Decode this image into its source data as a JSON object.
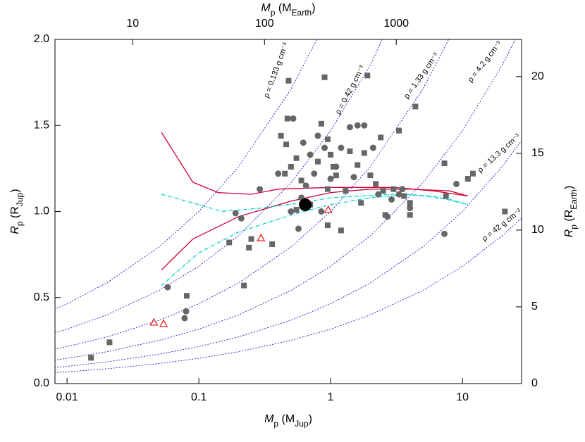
{
  "chart_data": {
    "type": "scatter",
    "x_label": {
      "symbol": "M",
      "symbol_sub": "p",
      "unit": " (M",
      "unit_sub": "Jup",
      "close": ")"
    },
    "y_label": {
      "symbol": "R",
      "symbol_sub": "p",
      "unit": " (R",
      "unit_sub": "Jup",
      "close": ")"
    },
    "x2_label": {
      "symbol": "M",
      "symbol_sub": "p",
      "unit": " (M",
      "unit_sub": "Earth",
      "close": ")"
    },
    "y2_label": {
      "symbol": "R",
      "symbol_sub": "p",
      "unit": " (R",
      "unit_sub": "Earth",
      "close": ")"
    },
    "xlog": true,
    "xlim": [
      0.0081,
      28.1
    ],
    "xticks": [
      0.01,
      0.1,
      1,
      10
    ],
    "ylim": [
      0,
      2
    ],
    "yticks": [
      {
        "value": 0,
        "label": "0.0"
      },
      {
        "value": 0.5,
        "label": "0.5"
      },
      {
        "value": 1,
        "label": "1.0"
      },
      {
        "value": 1.5,
        "label": "1.5"
      },
      {
        "value": 2,
        "label": "2.0"
      }
    ],
    "x2lim": [
      2.57,
      8930
    ],
    "x2ticks": [
      10,
      100,
      1000
    ],
    "y2lim": [
      0,
      22.42
    ],
    "y2ticks": [
      0,
      5,
      10,
      15,
      20
    ],
    "density_x": [
      0.008,
      0.01,
      0.02,
      0.05,
      0.1,
      0.2,
      0.5,
      1,
      2,
      5,
      10,
      20,
      28
    ],
    "density_curves": [
      {
        "name": "ρ = 0.133 g cm⁻³",
        "color": "#0000cc",
        "values": [
          0.431,
          0.464,
          0.585,
          0.794,
          1.0,
          1.26,
          1.71,
          2.154,
          2.714,
          3.68,
          4.64,
          5.85,
          6.54
        ]
      },
      {
        "name": "ρ = 0.42 g cm⁻³",
        "color": "#0000cc",
        "values": [
          0.294,
          0.316,
          0.399,
          0.541,
          0.682,
          0.859,
          1.166,
          1.469,
          1.85,
          2.51,
          3.16,
          3.99,
          4.46
        ]
      },
      {
        "name": "ρ = 1.33 g cm⁻³",
        "color": "#0000cc",
        "values": [
          0.2,
          0.215,
          0.271,
          0.368,
          0.464,
          0.585,
          0.794,
          1.0,
          1.26,
          1.71,
          2.154,
          2.71,
          3.04
        ]
      },
      {
        "name": "ρ = 4.2 g cm⁻³",
        "color": "#0000cc",
        "values": [
          0.136,
          0.147,
          0.185,
          0.251,
          0.316,
          0.399,
          0.541,
          0.682,
          0.859,
          1.166,
          1.469,
          1.85,
          2.07
        ]
      },
      {
        "name": "ρ = 13.3 g cm⁻³",
        "color": "#0000cc",
        "values": [
          0.0928,
          0.1,
          0.126,
          0.171,
          0.215,
          0.271,
          0.368,
          0.464,
          0.585,
          0.794,
          1.0,
          1.26,
          1.41
        ]
      },
      {
        "name": "ρ = 42 g cm⁻³",
        "color": "#0000cc",
        "values": [
          0.0632,
          0.0682,
          0.0859,
          0.1166,
          0.147,
          0.185,
          0.251,
          0.316,
          0.399,
          0.541,
          0.682,
          0.859,
          0.96
        ]
      }
    ],
    "model_curves": [
      {
        "color": "#cc0033",
        "dash": false,
        "x": [
          0.052,
          0.09,
          0.14,
          0.25,
          0.4,
          1,
          3,
          6,
          11
        ],
        "values": [
          1.46,
          1.17,
          1.11,
          1.1,
          1.13,
          1.14,
          1.14,
          1.12,
          1.09
        ]
      },
      {
        "color": "#cc0033",
        "dash": false,
        "x": [
          0.052,
          0.09,
          0.2,
          0.5,
          1,
          2,
          4,
          8,
          11
        ],
        "values": [
          0.66,
          0.84,
          0.97,
          1.06,
          1.11,
          1.13,
          1.13,
          1.12,
          1.09
        ]
      },
      {
        "color": "#00cccc",
        "dash": true,
        "x": [
          0.052,
          0.1,
          0.15,
          0.3,
          0.6,
          1,
          3,
          6,
          11
        ],
        "values": [
          1.1,
          1.04,
          1.0,
          1.02,
          1.05,
          1.08,
          1.1,
          1.09,
          1.04
        ]
      },
      {
        "color": "#00cccc",
        "dash": true,
        "x": [
          0.052,
          0.1,
          0.2,
          0.5,
          1,
          2,
          4,
          8,
          11
        ],
        "values": [
          0.57,
          0.76,
          0.88,
          0.98,
          1.04,
          1.08,
          1.1,
          1.07,
          1.04
        ]
      }
    ],
    "series": [
      {
        "marker": "square",
        "color": "#666666",
        "x": [
          0.0152,
          0.021,
          0.081,
          0.22,
          0.17,
          0.24,
          0.25,
          0.36,
          0.48,
          0.47,
          0.42,
          0.46,
          0.45,
          0.5,
          0.55,
          0.6,
          0.55,
          0.7,
          0.8,
          0.85,
          0.9,
          0.95,
          1.0,
          1.05,
          1.1,
          0.95,
          0.95,
          1.2,
          1.3,
          1.4,
          1.6,
          1.8,
          1.9,
          2.0,
          2.2,
          2.4,
          2.5,
          2.6,
          3.0,
          3.3,
          3.6,
          4.0,
          4.4,
          7.3,
          7.5,
          11,
          12,
          21,
          4.0,
          1.7
        ],
        "values": [
          0.15,
          0.24,
          0.51,
          0.57,
          0.82,
          0.79,
          0.84,
          0.81,
          1.76,
          1.54,
          1.44,
          1.39,
          1.22,
          1.26,
          1.31,
          1.18,
          1.01,
          1.04,
          1.29,
          1.51,
          1.78,
          1.42,
          1.33,
          1.26,
          1.21,
          1.13,
          0.92,
          0.89,
          1.12,
          1.35,
          1.27,
          1.34,
          1.79,
          1.21,
          1.16,
          1.43,
          1.12,
          0.98,
          1.13,
          1.47,
          1.09,
          1.05,
          1.61,
          1.28,
          1.09,
          1.19,
          1.22,
          1.0,
          0.98,
          1.05
        ]
      },
      {
        "marker": "circle",
        "color": "#666666",
        "x": [
          0.058,
          0.08,
          0.078,
          0.19,
          0.21,
          0.29,
          0.57,
          0.5,
          0.52,
          0.6,
          0.65,
          0.62,
          0.7,
          0.75,
          0.8,
          0.85,
          0.9,
          1.0,
          1.1,
          1.2,
          1.4,
          1.5,
          1.6,
          1.8,
          2.1,
          2.3,
          2.7,
          3.3,
          3.5,
          4.0,
          7.3,
          9,
          2.9,
          0.4
        ],
        "values": [
          0.56,
          0.42,
          0.38,
          0.99,
          0.96,
          1.13,
          0.9,
          1.0,
          1.54,
          1.08,
          1.15,
          1.4,
          1.33,
          1.22,
          1.44,
          1.0,
          1.37,
          1.19,
          1.26,
          1.37,
          1.49,
          1.2,
          1.5,
          1.5,
          1.37,
          1.1,
          0.97,
          1.1,
          1.13,
          1.02,
          0.87,
          1.16,
          1.07,
          1.22
        ]
      },
      {
        "marker": "triangle",
        "color": "#ee1111",
        "x": [
          0.0456,
          0.054,
          0.296,
          0.96
        ],
        "values": [
          0.356,
          0.348,
          0.846,
          1.01
        ]
      },
      {
        "marker": "bigdot",
        "color": "#000000",
        "x": [
          0.642
        ],
        "values": [
          1.039
        ]
      }
    ]
  }
}
